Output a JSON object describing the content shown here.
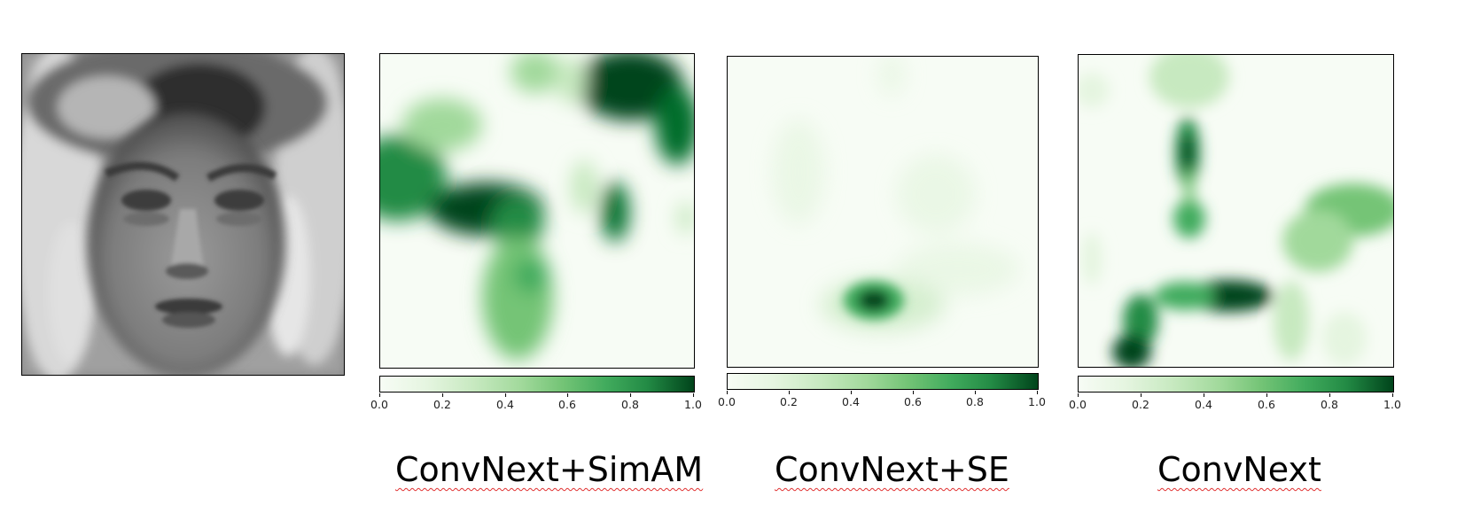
{
  "colorbar": {
    "cmap": "Greens",
    "range": [
      0.0,
      1.0
    ],
    "ticks": [
      "0.0",
      "0.2",
      "0.4",
      "0.6",
      "0.8",
      "1.0"
    ]
  },
  "panels": [
    {
      "caption": "ConvNext+SimAM"
    },
    {
      "caption": "ConvNext+SE"
    },
    {
      "caption": "ConvNext"
    }
  ],
  "colors": {
    "low": "#f7fcf5",
    "high": "#00441b",
    "spellcheck_underline": "#e03030"
  }
}
